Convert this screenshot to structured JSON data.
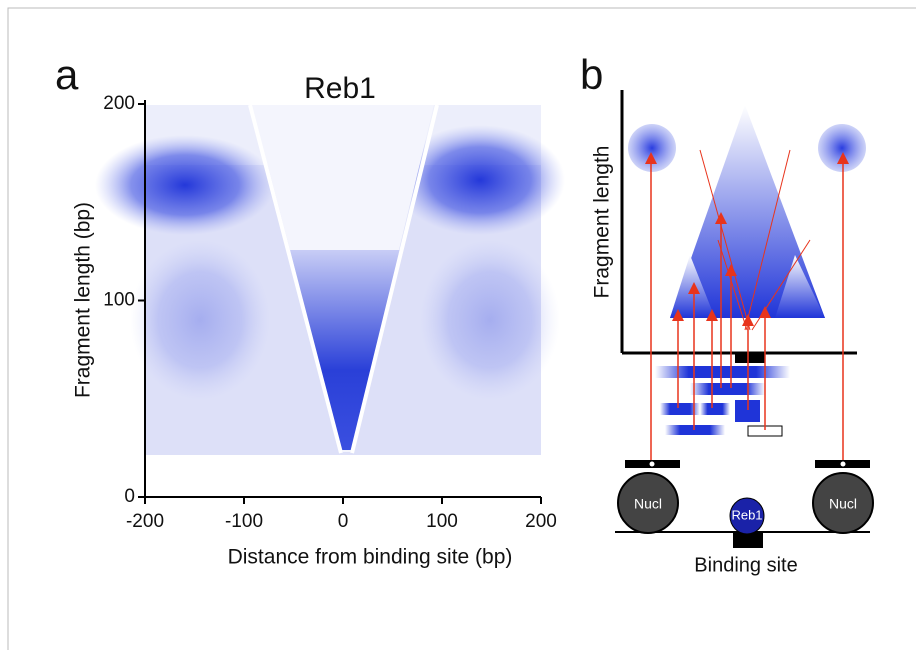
{
  "panel_a": {
    "label": "a",
    "title": "Reb1",
    "x_label": "Distance from binding site (bp)",
    "y_label": "Fragment length (bp)",
    "xlim": [
      -200,
      200
    ],
    "ylim": [
      0,
      200
    ],
    "xticks": [
      -200,
      -100,
      0,
      100,
      200
    ],
    "yticks": [
      0,
      100,
      200
    ]
  },
  "panel_b": {
    "label": "b",
    "y_label": "Fragment length",
    "nucleosome_left": "Nucl",
    "nucleosome_right": "Nucl",
    "factor": "Reb1",
    "x_label": "Binding site"
  }
}
